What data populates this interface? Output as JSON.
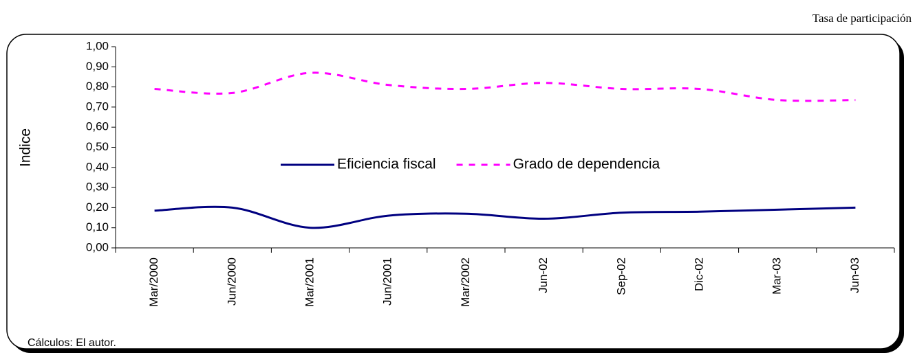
{
  "chart_data": {
    "type": "line",
    "corner_note": "Tasa de participación",
    "y_label": "Indice",
    "footnote": "Cálculos: El autor.",
    "categories": [
      "Mar/2000",
      "Jun/2000",
      "Mar/2001",
      "Jun/2001",
      "Mar/2002",
      "Jun-02",
      "Sep-02",
      "Dic-02",
      "Mar-03",
      "Jun-03"
    ],
    "series": [
      {
        "name": "Eficiencia fiscal",
        "color": "#000080",
        "dash": false,
        "values": [
          0.185,
          0.2,
          0.1,
          0.16,
          0.17,
          0.145,
          0.175,
          0.18,
          0.19,
          0.2
        ]
      },
      {
        "name": "Grado de dependencia",
        "color": "#ff00ff",
        "dash": true,
        "values": [
          0.79,
          0.77,
          0.87,
          0.81,
          0.79,
          0.82,
          0.79,
          0.79,
          0.735,
          0.735
        ]
      }
    ],
    "ylim": [
      0,
      1
    ],
    "yticks": [
      {
        "value": 0,
        "label": "0,00"
      },
      {
        "value": 0.1,
        "label": "0,10"
      },
      {
        "value": 0.2,
        "label": "0,20"
      },
      {
        "value": 0.3,
        "label": "0,30"
      },
      {
        "value": 0.4,
        "label": "0,40"
      },
      {
        "value": 0.5,
        "label": "0,50"
      },
      {
        "value": 0.6,
        "label": "0,60"
      },
      {
        "value": 0.7,
        "label": "0,70"
      },
      {
        "value": 0.8,
        "label": "0,80"
      },
      {
        "value": 0.9,
        "label": "0,90"
      },
      {
        "value": 1,
        "label": "1,00"
      }
    ],
    "smooth": true
  }
}
